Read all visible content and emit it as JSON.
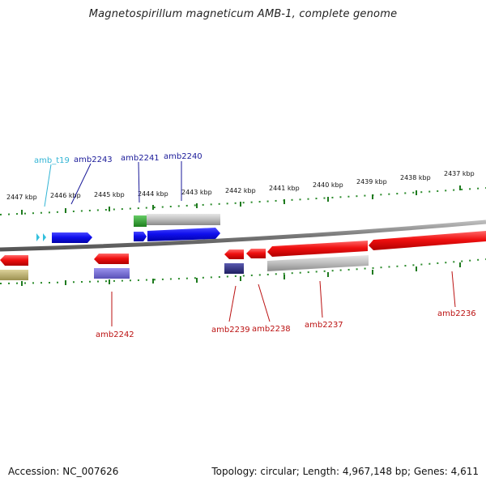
{
  "header": {
    "title": "Magnetospirillum magneticum AMB-1, complete genome"
  },
  "footer": {
    "accession": "Accession: NC_007626",
    "summary": "Topology: circular; Length: 4,967,148 bp; Genes: 4,611"
  },
  "scale": {
    "labels": [
      "2447 kbp",
      "2446 kbp",
      "2445 kbp",
      "2444 kbp",
      "2443 kbp",
      "2442 kbp",
      "2441 kbp",
      "2440 kbp",
      "2439 kbp",
      "2438 kbp",
      "2437 kbp"
    ]
  },
  "gene_labels": {
    "amb_t19": "amb_t19",
    "amb2243": "amb2243",
    "amb2241": "amb2241",
    "amb2240": "amb2240",
    "amb2242": "amb2242",
    "amb2239": "amb2239",
    "amb2238": "amb2238",
    "amb2237": "amb2237",
    "amb2236": "amb2236"
  },
  "colors": {
    "forward_gene": "#1010ee",
    "reverse_gene": "#ee1010",
    "trna": "#33c0dd",
    "cog_gray": "#b8b8b8",
    "cog_green": "#33aa33",
    "cog_purple": "#7a70d8",
    "cog_navy": "#303080",
    "cog_olive": "#bdb070",
    "tick": "#228b22",
    "backbone": "#808080",
    "label_forward": "#1a1a99",
    "label_reverse": "#bb1111",
    "label_trna": "#33b5d5"
  }
}
